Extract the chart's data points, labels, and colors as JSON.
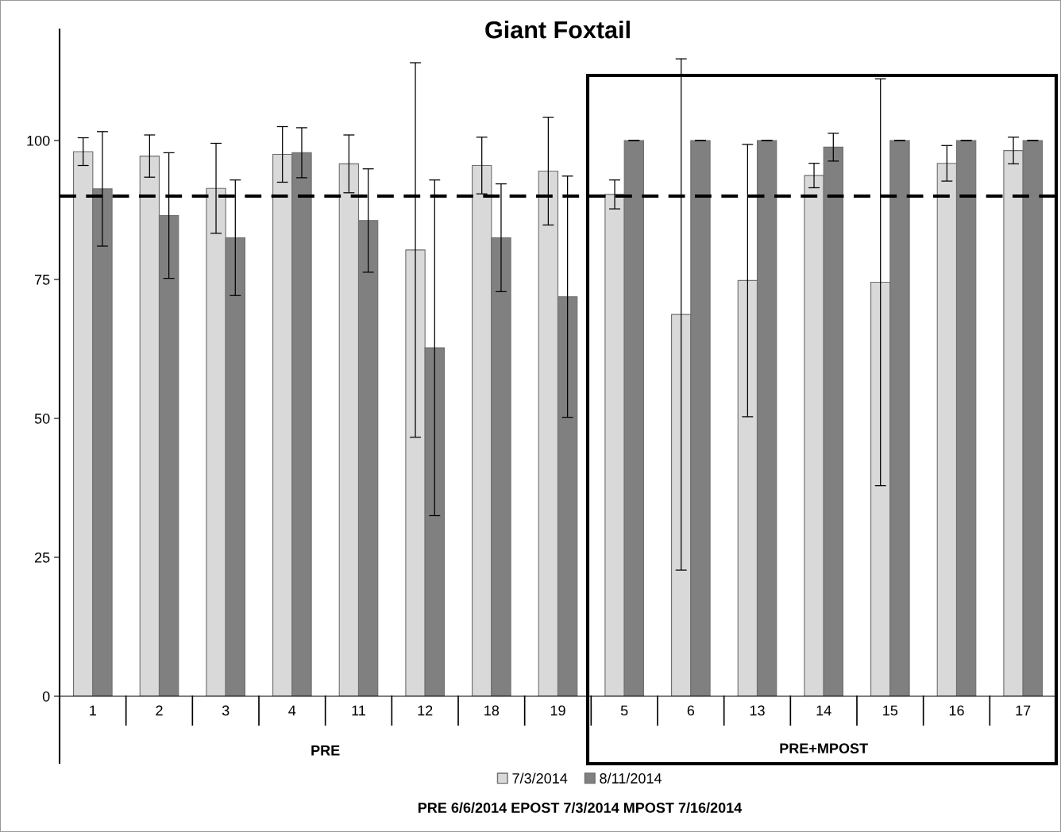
{
  "chart_data": {
    "type": "bar",
    "title": "Giant Foxtail",
    "categories": [
      "1",
      "2",
      "3",
      "4",
      "11",
      "12",
      "18",
      "19",
      "5",
      "6",
      "13",
      "14",
      "15",
      "16",
      "17"
    ],
    "series": [
      {
        "name": "7/3/2014",
        "color": "#d9d9d9",
        "values": [
          98.0,
          97.2,
          91.4,
          97.5,
          95.8,
          80.3,
          95.5,
          94.5,
          90.3,
          68.7,
          74.8,
          93.7,
          74.5,
          95.9,
          98.2
        ],
        "errors": [
          2.5,
          3.8,
          8.1,
          5.0,
          5.2,
          33.7,
          5.1,
          9.7,
          2.6,
          46.0,
          24.5,
          2.2,
          36.6,
          3.2,
          2.4
        ]
      },
      {
        "name": "8/11/2014",
        "color": "#808080",
        "values": [
          91.3,
          86.5,
          82.5,
          97.8,
          85.6,
          62.7,
          82.5,
          71.9,
          100,
          100,
          100,
          98.8,
          100,
          100,
          100
        ],
        "errors": [
          10.3,
          11.3,
          10.4,
          4.5,
          9.3,
          30.2,
          9.7,
          21.7,
          0,
          0,
          0,
          2.5,
          0,
          0,
          0
        ]
      }
    ],
    "ylim": [
      0,
      120
    ],
    "yticks": [
      0,
      25,
      50,
      75,
      100
    ],
    "ref_lines": [
      {
        "axis": "y",
        "value": 90,
        "color": "#000000",
        "line_style": "dashed"
      }
    ],
    "annotations": [
      "PRE",
      "PRE+MPOST",
      "PRE 6/6/2014 EPOST 7/3/2014 MPOST 7/16/2014"
    ],
    "grid": false,
    "legend": "bottom"
  }
}
